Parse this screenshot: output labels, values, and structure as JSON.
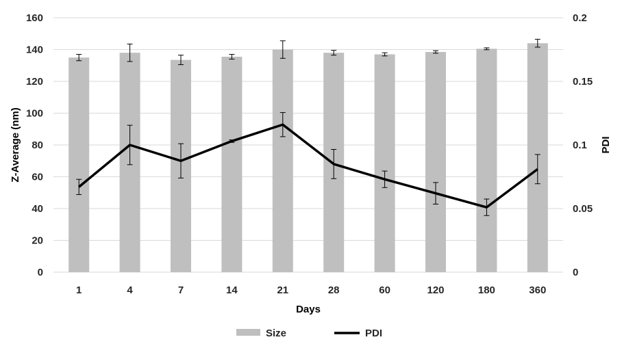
{
  "chart_data": {
    "type": "bar",
    "categories": [
      "1",
      "4",
      "7",
      "14",
      "21",
      "28",
      "60",
      "120",
      "180",
      "360"
    ],
    "xlabel": "Days",
    "ylabel": "Z-Average (nm)",
    "y2label": "PDI",
    "ylim": [
      0,
      160
    ],
    "y2lim": [
      0,
      0.2
    ],
    "yticks": [
      "0",
      "20",
      "40",
      "60",
      "80",
      "100",
      "120",
      "140",
      "160"
    ],
    "y2ticks": [
      "0",
      "0.05",
      "0.1",
      "0.15",
      "0.2"
    ],
    "grid": true,
    "legend_position": "bottom",
    "series": [
      {
        "name": "Size",
        "kind": "bar",
        "axis": "left",
        "color": "#bfbfbf",
        "values": [
          135,
          138,
          133.5,
          135.5,
          140,
          138,
          137,
          138.5,
          140.5,
          144
        ],
        "errors": [
          2,
          5.5,
          3,
          1.5,
          5.5,
          1.5,
          1,
          0.8,
          0.6,
          2.5
        ]
      },
      {
        "name": "PDI",
        "kind": "line",
        "axis": "right",
        "color": "#000000",
        "values": [
          0.067,
          0.1,
          0.0875,
          0.103,
          0.116,
          0.085,
          0.073,
          0.062,
          0.051,
          0.081
        ],
        "errors": [
          0.006,
          0.0155,
          0.0135,
          0.001,
          0.0095,
          0.0115,
          0.0065,
          0.0085,
          0.0065,
          0.0115
        ]
      }
    ]
  }
}
